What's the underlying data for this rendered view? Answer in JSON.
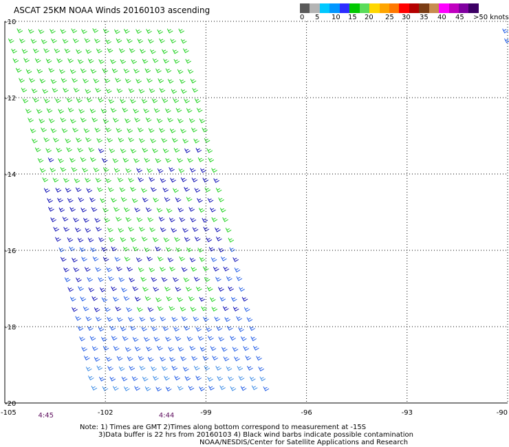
{
  "title": "ASCAT 25KM NOAA Winds 20160103 ascending",
  "colorbar": {
    "colors": [
      "#5a5a5a",
      "#b4b4b4",
      "#00c8ff",
      "#0096ff",
      "#2c2cff",
      "#00c800",
      "#5adc5a",
      "#ffd700",
      "#ffa500",
      "#ff7800",
      "#ff0000",
      "#b40000",
      "#7a3c14",
      "#c88c50",
      "#ff00ff",
      "#c000c0",
      "#8000a0",
      "#3c0064"
    ],
    "labels": [
      "0",
      "5",
      "10",
      "15",
      "20",
      "25",
      "30",
      "35",
      "40",
      "45",
      ">50 knots"
    ]
  },
  "map": {
    "lat_labels": [
      "-10",
      "-12",
      "-14",
      "-16",
      "-18",
      "-20"
    ],
    "lon_labels": [
      "-105",
      "-102",
      "-99",
      "-96",
      "-93",
      "-90"
    ],
    "lat_range": [
      -20,
      -10
    ],
    "lon_range": [
      -105,
      -90
    ],
    "wind_colors": {
      "green": "#1ed21e",
      "navy": "#0a0ab4",
      "blue": "#1e5ae6",
      "lightblue": "#3c8ce6"
    }
  },
  "times": [
    {
      "label": "4:45",
      "lon": -103.8
    },
    {
      "label": "4:44",
      "lon": -100.2
    }
  ],
  "notes": {
    "line1": "Note: 1) Times are GMT 2)Times along bottom correspond to measurement at -15S",
    "line2": "3)Data buffer is 22 hrs from 20160103 4) Black wind barbs indicate possible contamination",
    "line3": "NOAA/NESDIS/Center for Satellite Applications and Research"
  }
}
